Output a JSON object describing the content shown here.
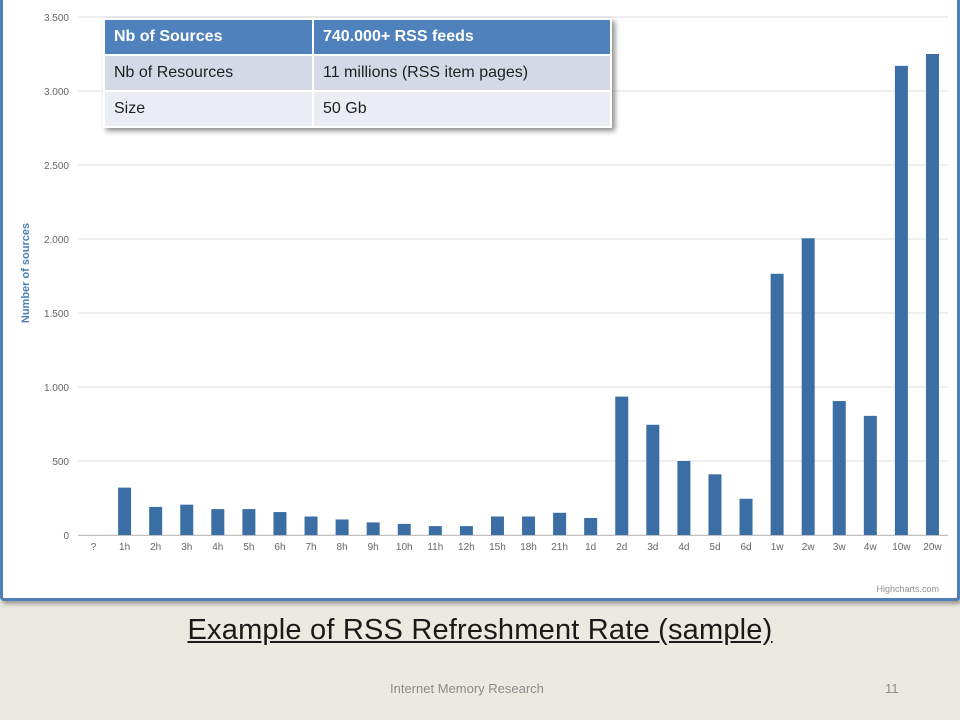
{
  "table": {
    "rows": [
      [
        "Nb of Sources",
        "740.000+ RSS feeds"
      ],
      [
        "Nb of Resources",
        "11 millions (RSS item pages)"
      ],
      [
        "Size",
        "50 Gb"
      ]
    ]
  },
  "caption": "Example of RSS Refreshment Rate (sample)",
  "footer": {
    "text": "Internet Memory Research",
    "page": "11"
  },
  "credit": "Highcharts.com",
  "chart_data": {
    "type": "bar",
    "title": "",
    "xlabel": "",
    "ylabel": "Number of sources",
    "ylim": [
      0,
      3500
    ],
    "yticks": [
      0,
      500,
      1000,
      1500,
      2000,
      2500,
      3000,
      3500
    ],
    "ytick_labels": [
      "0",
      "500",
      "1.000",
      "1.500",
      "2.000",
      "2.500",
      "3.000",
      "3.500"
    ],
    "grid": true,
    "categories": [
      "?",
      "1h",
      "2h",
      "3h",
      "4h",
      "5h",
      "6h",
      "7h",
      "8h",
      "9h",
      "10h",
      "11h",
      "12h",
      "15h",
      "18h",
      "21h",
      "1d",
      "2d",
      "3d",
      "4d",
      "5d",
      "6d",
      "1w",
      "2w",
      "3w",
      "4w",
      "10w",
      "20w"
    ],
    "values": [
      0,
      320,
      190,
      205,
      175,
      175,
      155,
      125,
      105,
      85,
      75,
      60,
      60,
      125,
      125,
      150,
      115,
      935,
      745,
      500,
      410,
      245,
      1765,
      2005,
      905,
      805,
      3170,
      3250
    ],
    "bar_color": "#3b6ea5",
    "grid_color": "#dcdcdc",
    "label_color": "#666666",
    "ylabel_color": "#4f7fb8"
  }
}
